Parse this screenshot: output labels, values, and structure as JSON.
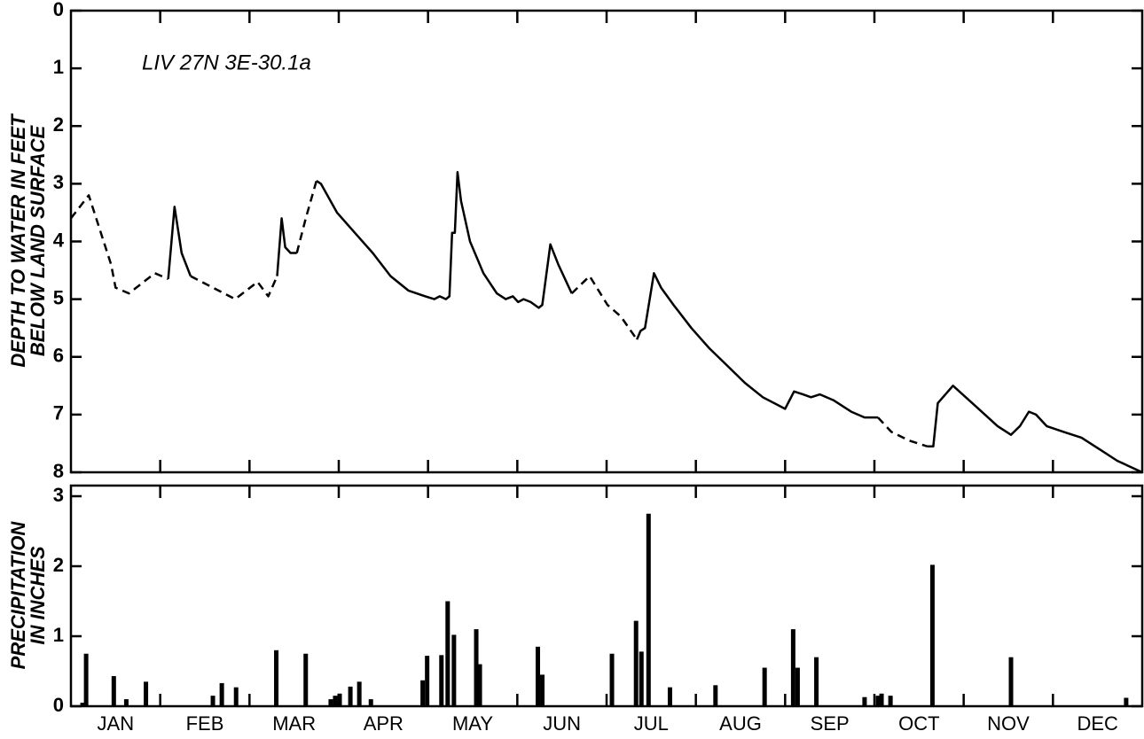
{
  "chart_data": [
    {
      "type": "line",
      "annotation": "LIV 27N 3E-30.1a",
      "ylabel": [
        "DEPTH TO WATER IN FEET",
        "BELOW LAND SURFACE"
      ],
      "xlim": [
        0,
        12
      ],
      "ylim": [
        8,
        0
      ],
      "yticks": [
        0,
        1,
        2,
        3,
        4,
        5,
        6,
        7,
        8
      ],
      "x": [
        0,
        0.2,
        0.45,
        0.5,
        0.65,
        0.94,
        1.09,
        1.16,
        1.24,
        1.34,
        1.84,
        2.09,
        2.21,
        2.31,
        2.36,
        2.4,
        2.46,
        2.53,
        2.63,
        2.75,
        2.8,
        2.98,
        3.18,
        3.38,
        3.58,
        3.78,
        3.97,
        4.07,
        4.13,
        4.2,
        4.24,
        4.27,
        4.3,
        4.33,
        4.37,
        4.47,
        4.62,
        4.77,
        4.87,
        4.95,
        5.01,
        5.07,
        5.15,
        5.24,
        5.28,
        5.37,
        5.46,
        5.61,
        5.81,
        6.01,
        6.16,
        6.34,
        6.38,
        6.43,
        6.53,
        6.61,
        6.75,
        6.95,
        7.15,
        7.35,
        7.55,
        7.75,
        8.0,
        8.1,
        8.2,
        8.29,
        8.39,
        8.54,
        8.74,
        8.89,
        9.04,
        9.19,
        9.39,
        9.59,
        9.66,
        9.71,
        9.88,
        10.13,
        10.38,
        10.53,
        10.63,
        10.73,
        10.81,
        10.93,
        11.12,
        11.32,
        11.52,
        11.72,
        12.0
      ],
      "series": [
        {
          "style": "solid",
          "color": "#000000",
          "values": [
            null,
            null,
            null,
            null,
            null,
            null,
            4.65,
            3.4,
            4.2,
            4.6,
            null,
            null,
            null,
            4.6,
            3.6,
            4.1,
            4.2,
            4.2,
            null,
            2.95,
            3.0,
            3.5,
            3.85,
            4.2,
            4.6,
            4.85,
            4.95,
            5.0,
            4.95,
            5.0,
            4.95,
            3.85,
            3.85,
            2.8,
            3.3,
            4.0,
            4.55,
            4.9,
            5.0,
            4.95,
            5.05,
            5.0,
            5.05,
            5.15,
            5.1,
            4.05,
            4.4,
            4.9,
            null,
            null,
            null,
            5.7,
            5.55,
            5.5,
            4.55,
            4.8,
            5.1,
            5.5,
            5.85,
            6.15,
            6.45,
            6.7,
            6.9,
            6.6,
            6.65,
            6.7,
            6.65,
            6.75,
            6.95,
            7.05,
            7.05,
            null,
            null,
            7.55,
            7.55,
            6.8,
            6.5,
            6.85,
            7.2,
            7.35,
            7.2,
            6.95,
            7.0,
            7.2,
            7.3,
            7.4,
            7.6,
            7.8,
            8.0
          ]
        },
        {
          "style": "dashed",
          "color": "#000000",
          "values": [
            3.6,
            3.2,
            4.4,
            4.8,
            4.9,
            4.55,
            4.65,
            null,
            null,
            4.6,
            5.0,
            4.7,
            4.95,
            4.6,
            null,
            null,
            null,
            4.2,
            3.6,
            2.95,
            null,
            null,
            null,
            null,
            null,
            null,
            null,
            null,
            null,
            null,
            null,
            null,
            null,
            null,
            null,
            null,
            null,
            null,
            null,
            null,
            null,
            null,
            null,
            null,
            null,
            null,
            null,
            4.9,
            4.6,
            5.1,
            5.3,
            5.7,
            null,
            null,
            null,
            null,
            null,
            null,
            null,
            null,
            null,
            null,
            null,
            null,
            null,
            null,
            null,
            null,
            null,
            null,
            7.05,
            7.3,
            7.45,
            7.55,
            null,
            null,
            null,
            null,
            null,
            null,
            null,
            null,
            null,
            null,
            null,
            null,
            null,
            null,
            null
          ]
        }
      ]
    },
    {
      "type": "bar",
      "ylabel": [
        "PRECIPITATION",
        "IN INCHES"
      ],
      "categories": [
        "JAN",
        "FEB",
        "MAR",
        "APR",
        "MAY",
        "JUN",
        "JUL",
        "AUG",
        "SEP",
        "OCT",
        "NOV",
        "DEC"
      ],
      "xlim": [
        0,
        12
      ],
      "ylim": [
        0,
        3
      ],
      "yticks": [
        0,
        1,
        2,
        3
      ],
      "color": "#000000",
      "x": [
        0.13,
        0.17,
        0.48,
        0.62,
        0.84,
        1.59,
        1.69,
        1.85,
        2.3,
        2.63,
        2.91,
        2.96,
        3.01,
        3.13,
        3.23,
        3.36,
        3.94,
        3.99,
        4.15,
        4.22,
        4.29,
        4.54,
        4.58,
        5.23,
        5.28,
        6.06,
        6.33,
        6.39,
        6.47,
        6.71,
        7.22,
        7.77,
        8.09,
        8.14,
        8.35,
        8.89,
        9.04,
        9.08,
        9.18,
        9.65,
        10.53,
        11.82
      ],
      "values": [
        0.05,
        0.75,
        0.43,
        0.1,
        0.35,
        0.15,
        0.33,
        0.27,
        0.8,
        0.75,
        0.1,
        0.15,
        0.18,
        0.28,
        0.35,
        0.1,
        0.37,
        0.72,
        0.73,
        1.5,
        1.02,
        1.1,
        0.6,
        0.85,
        0.45,
        0.75,
        1.22,
        0.78,
        2.75,
        0.27,
        0.3,
        0.55,
        1.1,
        0.55,
        0.7,
        0.13,
        0.15,
        0.18,
        0.15,
        2.02,
        0.7,
        0.12
      ]
    }
  ]
}
